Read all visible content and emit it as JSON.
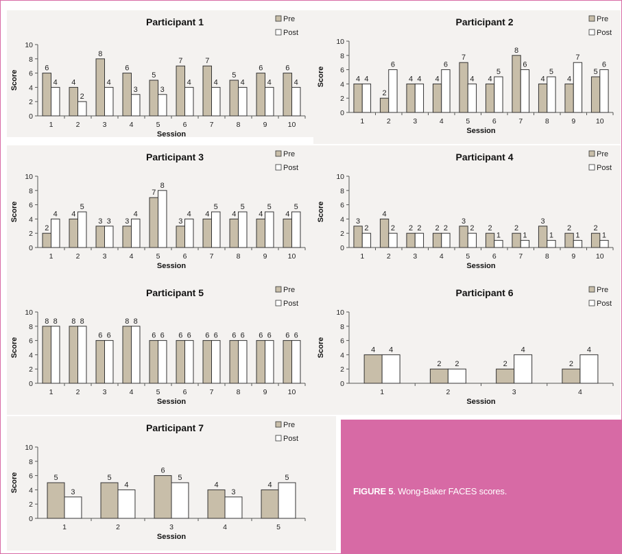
{
  "figure": {
    "caption_label": "FIGURE 5",
    "caption_text": ". Wong-Baker FACES scores."
  },
  "colors": {
    "pre": "#c8bea9",
    "post": "#ffffff",
    "border": "#333333",
    "caption_bg": "#d76aa5"
  },
  "chart_data": [
    {
      "type": "bar",
      "title": "Participant 1",
      "xlabel": "Session",
      "ylabel": "Score",
      "ylim": [
        0,
        10
      ],
      "yticks": [
        0,
        2,
        4,
        6,
        8,
        10
      ],
      "legend": "top-right",
      "categories": [
        "1",
        "2",
        "3",
        "4",
        "5",
        "6",
        "7",
        "8",
        "9",
        "10"
      ],
      "series": [
        {
          "name": "Pre",
          "values": [
            6,
            4,
            8,
            6,
            5,
            7,
            7,
            5,
            6,
            6
          ]
        },
        {
          "name": "Post",
          "values": [
            4,
            2,
            4,
            3,
            3,
            4,
            4,
            4,
            4,
            4
          ]
        }
      ]
    },
    {
      "type": "bar",
      "title": "Participant 2",
      "xlabel": "Session",
      "ylabel": "Score",
      "ylim": [
        0,
        10
      ],
      "yticks": [
        0,
        2,
        4,
        6,
        8,
        10
      ],
      "legend": "top-right",
      "categories": [
        "1",
        "2",
        "3",
        "4",
        "5",
        "6",
        "7",
        "8",
        "9",
        "10"
      ],
      "series": [
        {
          "name": "Pre",
          "values": [
            4,
            2,
            4,
            4,
            7,
            4,
            8,
            4,
            4,
            5
          ]
        },
        {
          "name": "Post",
          "values": [
            4,
            6,
            4,
            6,
            4,
            5,
            6,
            5,
            7,
            6
          ]
        }
      ]
    },
    {
      "type": "bar",
      "title": "Participant 3",
      "xlabel": "Session",
      "ylabel": "Score",
      "ylim": [
        0,
        10
      ],
      "yticks": [
        0,
        2,
        4,
        6,
        8,
        10
      ],
      "legend": "top-right",
      "categories": [
        "1",
        "2",
        "3",
        "4",
        "5",
        "6",
        "7",
        "8",
        "9",
        "10"
      ],
      "series": [
        {
          "name": "Pre",
          "values": [
            2,
            4,
            3,
            3,
            7,
            3,
            4,
            4,
            4,
            4
          ]
        },
        {
          "name": "Post",
          "values": [
            4,
            5,
            3,
            4,
            8,
            4,
            5,
            5,
            5,
            5
          ]
        }
      ]
    },
    {
      "type": "bar",
      "title": "Participant 4",
      "xlabel": "Session",
      "ylabel": "Score",
      "ylim": [
        0,
        10
      ],
      "yticks": [
        0,
        2,
        4,
        6,
        8,
        10
      ],
      "legend": "top-right",
      "categories": [
        "1",
        "2",
        "3",
        "4",
        "5",
        "6",
        "7",
        "8",
        "9",
        "10"
      ],
      "series": [
        {
          "name": "Pre",
          "values": [
            3,
            4,
            2,
            2,
            3,
            2,
            2,
            3,
            2,
            2
          ]
        },
        {
          "name": "Post",
          "values": [
            2,
            2,
            2,
            2,
            2,
            1,
            1,
            1,
            1,
            1
          ]
        }
      ]
    },
    {
      "type": "bar",
      "title": "Participant 5",
      "xlabel": "Session",
      "ylabel": "Score",
      "ylim": [
        0,
        10
      ],
      "yticks": [
        0,
        2,
        4,
        6,
        8,
        10
      ],
      "legend": "top-right",
      "categories": [
        "1",
        "2",
        "3",
        "4",
        "5",
        "6",
        "7",
        "8",
        "9",
        "10"
      ],
      "series": [
        {
          "name": "Pre",
          "values": [
            8,
            8,
            6,
            8,
            6,
            6,
            6,
            6,
            6,
            6
          ]
        },
        {
          "name": "Post",
          "values": [
            8,
            8,
            6,
            8,
            6,
            6,
            6,
            6,
            6,
            6
          ]
        }
      ]
    },
    {
      "type": "bar",
      "title": "Participant 6",
      "xlabel": "Session",
      "ylabel": "Score",
      "ylim": [
        0,
        10
      ],
      "yticks": [
        0,
        2,
        4,
        6,
        8,
        10
      ],
      "legend": "top-right",
      "categories": [
        "1",
        "2",
        "3",
        "4"
      ],
      "series": [
        {
          "name": "Pre",
          "values": [
            4,
            2,
            2,
            2
          ]
        },
        {
          "name": "Post",
          "values": [
            4,
            2,
            4,
            4
          ]
        }
      ]
    },
    {
      "type": "bar",
      "title": "Participant 7",
      "xlabel": "Session",
      "ylabel": "Score",
      "ylim": [
        0,
        10
      ],
      "yticks": [
        0,
        2,
        4,
        6,
        8,
        10
      ],
      "legend": "top-right",
      "categories": [
        "1",
        "2",
        "3",
        "4",
        "5"
      ],
      "series": [
        {
          "name": "Pre",
          "values": [
            5,
            5,
            6,
            4,
            4
          ]
        },
        {
          "name": "Post",
          "values": [
            3,
            4,
            5,
            3,
            5
          ]
        }
      ]
    }
  ]
}
